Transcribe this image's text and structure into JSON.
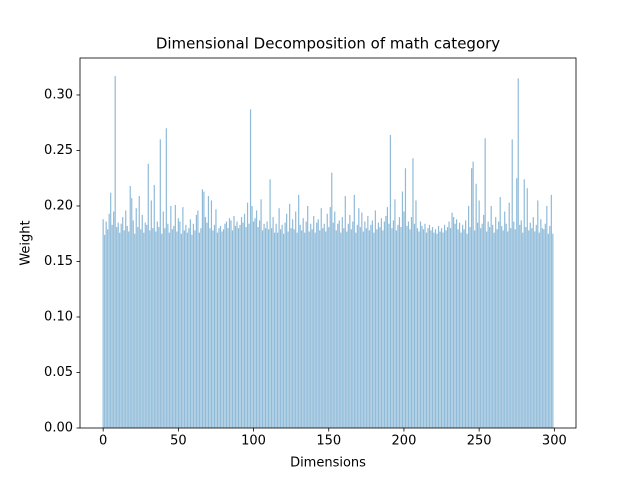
{
  "chart_data": {
    "type": "bar",
    "title": "Dimensional Decomposition of math category",
    "x_label": "Dimensions",
    "y_label": "Weight",
    "color": "#1f77b4",
    "alpha": 0.5,
    "bar_width": 0.8,
    "xlim": [
      -15.4,
      314.4
    ],
    "ylim": [
      0,
      0.3333
    ],
    "xticks": [
      0,
      50,
      100,
      150,
      200,
      250,
      300
    ],
    "yticks": [
      {
        "value": 0,
        "label": "0.00"
      },
      {
        "value": 0.05,
        "label": "0.05"
      },
      {
        "value": 0.1,
        "label": "0.10"
      },
      {
        "value": 0.15,
        "label": "0.15"
      },
      {
        "value": 0.2,
        "label": "0.20"
      },
      {
        "value": 0.25,
        "label": "0.25"
      },
      {
        "value": 0.3,
        "label": "0.30"
      }
    ],
    "x": [
      0,
      1,
      2,
      3,
      4,
      5,
      6,
      7,
      8,
      9,
      10,
      11,
      12,
      13,
      14,
      15,
      16,
      17,
      18,
      19,
      20,
      21,
      22,
      23,
      24,
      25,
      26,
      27,
      28,
      29,
      30,
      31,
      32,
      33,
      34,
      35,
      36,
      37,
      38,
      39,
      40,
      41,
      42,
      43,
      44,
      45,
      46,
      47,
      48,
      49,
      50,
      51,
      52,
      53,
      54,
      55,
      56,
      57,
      58,
      59,
      60,
      61,
      62,
      63,
      64,
      65,
      66,
      67,
      68,
      69,
      70,
      71,
      72,
      73,
      74,
      75,
      76,
      77,
      78,
      79,
      80,
      81,
      82,
      83,
      84,
      85,
      86,
      87,
      88,
      89,
      90,
      91,
      92,
      93,
      94,
      95,
      96,
      97,
      98,
      99,
      100,
      101,
      102,
      103,
      104,
      105,
      106,
      107,
      108,
      109,
      110,
      111,
      112,
      113,
      114,
      115,
      116,
      117,
      118,
      119,
      120,
      121,
      122,
      123,
      124,
      125,
      126,
      127,
      128,
      129,
      130,
      131,
      132,
      133,
      134,
      135,
      136,
      137,
      138,
      139,
      140,
      141,
      142,
      143,
      144,
      145,
      146,
      147,
      148,
      149,
      150,
      151,
      152,
      153,
      154,
      155,
      156,
      157,
      158,
      159,
      160,
      161,
      162,
      163,
      164,
      165,
      166,
      167,
      168,
      169,
      170,
      171,
      172,
      173,
      174,
      175,
      176,
      177,
      178,
      179,
      180,
      181,
      182,
      183,
      184,
      185,
      186,
      187,
      188,
      189,
      190,
      191,
      192,
      193,
      194,
      195,
      196,
      197,
      198,
      199,
      200,
      201,
      202,
      203,
      204,
      205,
      206,
      207,
      208,
      209,
      210,
      211,
      212,
      213,
      214,
      215,
      216,
      217,
      218,
      219,
      220,
      221,
      222,
      223,
      224,
      225,
      226,
      227,
      228,
      229,
      230,
      231,
      232,
      233,
      234,
      235,
      236,
      237,
      238,
      239,
      240,
      241,
      242,
      243,
      244,
      245,
      246,
      247,
      248,
      249,
      250,
      251,
      252,
      253,
      254,
      255,
      256,
      257,
      258,
      259,
      260,
      261,
      262,
      263,
      264,
      265,
      266,
      267,
      268,
      269,
      270,
      271,
      272,
      273,
      274,
      275,
      276,
      277,
      278,
      279,
      280,
      281,
      282,
      283,
      284,
      285,
      286,
      287,
      288,
      289,
      290,
      291,
      292,
      293,
      294,
      295,
      296,
      297,
      298,
      299
    ],
    "values": [
      0.188,
      0.174,
      0.186,
      0.179,
      0.193,
      0.212,
      0.183,
      0.195,
      0.317,
      0.181,
      0.185,
      0.176,
      0.184,
      0.19,
      0.178,
      0.196,
      0.182,
      0.177,
      0.218,
      0.207,
      0.187,
      0.175,
      0.198,
      0.181,
      0.209,
      0.179,
      0.192,
      0.176,
      0.185,
      0.183,
      0.238,
      0.178,
      0.205,
      0.18,
      0.219,
      0.177,
      0.186,
      0.181,
      0.26,
      0.175,
      0.195,
      0.18,
      0.27,
      0.184,
      0.176,
      0.2,
      0.179,
      0.182,
      0.201,
      0.177,
      0.189,
      0.186,
      0.175,
      0.199,
      0.178,
      0.183,
      0.176,
      0.18,
      0.188,
      0.174,
      0.184,
      0.178,
      0.192,
      0.196,
      0.176,
      0.18,
      0.215,
      0.213,
      0.19,
      0.185,
      0.209,
      0.18,
      0.205,
      0.178,
      0.183,
      0.197,
      0.176,
      0.18,
      0.182,
      0.177,
      0.179,
      0.184,
      0.186,
      0.18,
      0.189,
      0.187,
      0.178,
      0.191,
      0.182,
      0.186,
      0.18,
      0.183,
      0.19,
      0.185,
      0.193,
      0.181,
      0.203,
      0.184,
      0.287,
      0.2,
      0.186,
      0.189,
      0.196,
      0.181,
      0.187,
      0.206,
      0.178,
      0.184,
      0.18,
      0.186,
      0.179,
      0.224,
      0.18,
      0.19,
      0.176,
      0.184,
      0.176,
      0.198,
      0.179,
      0.183,
      0.175,
      0.185,
      0.193,
      0.177,
      0.202,
      0.18,
      0.188,
      0.179,
      0.195,
      0.176,
      0.21,
      0.183,
      0.178,
      0.189,
      0.176,
      0.186,
      0.2,
      0.177,
      0.184,
      0.179,
      0.191,
      0.176,
      0.185,
      0.188,
      0.178,
      0.198,
      0.18,
      0.184,
      0.177,
      0.193,
      0.181,
      0.199,
      0.23,
      0.185,
      0.195,
      0.178,
      0.184,
      0.187,
      0.176,
      0.19,
      0.18,
      0.209,
      0.177,
      0.184,
      0.192,
      0.179,
      0.186,
      0.21,
      0.176,
      0.183,
      0.198,
      0.181,
      0.194,
      0.177,
      0.186,
      0.18,
      0.191,
      0.178,
      0.183,
      0.187,
      0.176,
      0.196,
      0.179,
      0.185,
      0.181,
      0.189,
      0.178,
      0.186,
      0.191,
      0.199,
      0.184,
      0.264,
      0.18,
      0.187,
      0.206,
      0.178,
      0.183,
      0.19,
      0.181,
      0.213,
      0.195,
      0.234,
      0.182,
      0.186,
      0.179,
      0.19,
      0.243,
      0.184,
      0.205,
      0.18,
      0.177,
      0.186,
      0.182,
      0.179,
      0.184,
      0.176,
      0.18,
      0.183,
      0.178,
      0.181,
      0.176,
      0.179,
      0.175,
      0.182,
      0.177,
      0.18,
      0.176,
      0.183,
      0.178,
      0.181,
      0.186,
      0.18,
      0.194,
      0.19,
      0.184,
      0.188,
      0.179,
      0.185,
      0.176,
      0.183,
      0.179,
      0.187,
      0.175,
      0.2,
      0.181,
      0.234,
      0.24,
      0.178,
      0.22,
      0.185,
      0.205,
      0.18,
      0.184,
      0.192,
      0.261,
      0.177,
      0.186,
      0.181,
      0.2,
      0.183,
      0.176,
      0.19,
      0.179,
      0.186,
      0.208,
      0.182,
      0.178,
      0.195,
      0.184,
      0.177,
      0.203,
      0.18,
      0.26,
      0.186,
      0.179,
      0.225,
      0.315,
      0.183,
      0.187,
      0.176,
      0.224,
      0.181,
      0.216,
      0.178,
      0.185,
      0.18,
      0.19,
      0.177,
      0.183,
      0.205,
      0.176,
      0.188,
      0.18,
      0.179,
      0.184,
      0.2,
      0.175,
      0.182,
      0.21,
      0.175
    ]
  }
}
